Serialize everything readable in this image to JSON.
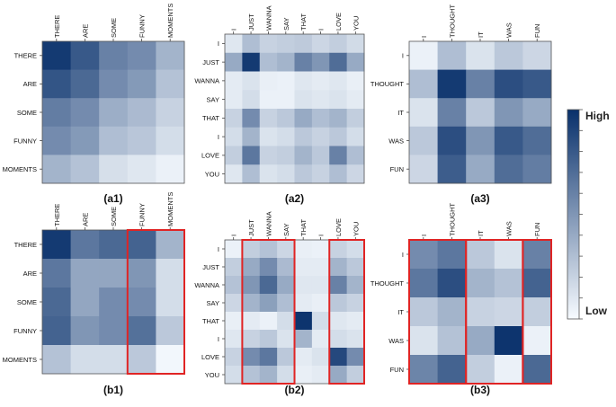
{
  "colors": {
    "low": "#f7fbff",
    "high": "#08306b",
    "highlight_box": "#e02424",
    "frame": "#555555"
  },
  "chart_data": [
    {
      "type": "heatmap",
      "caption": "(a1)",
      "rows": [
        "THERE",
        "ARE",
        "SOME",
        "FUNNY",
        "MOMENTS"
      ],
      "cols": [
        "THERE",
        "ARE",
        "SOME",
        "FUNNY",
        "MOMENTS"
      ],
      "values": [
        [
          0.95,
          0.8,
          0.6,
          0.55,
          0.35
        ],
        [
          0.82,
          0.72,
          0.55,
          0.48,
          0.28
        ],
        [
          0.62,
          0.55,
          0.38,
          0.32,
          0.2
        ],
        [
          0.55,
          0.48,
          0.3,
          0.26,
          0.15
        ],
        [
          0.35,
          0.28,
          0.14,
          0.1,
          0.05
        ]
      ],
      "highlight_cols": [],
      "vrange": [
        0,
        1
      ]
    },
    {
      "type": "heatmap",
      "caption": "(a2)",
      "rows": [
        "I",
        "JUST",
        "WANNA",
        "SAY",
        "THAT",
        "I",
        "LOVE",
        "YOU"
      ],
      "cols": [
        "I",
        "JUST",
        "WANNA",
        "SAY",
        "THAT",
        "I",
        "LOVE",
        "YOU"
      ],
      "values": [
        [
          0.1,
          0.3,
          0.2,
          0.22,
          0.24,
          0.18,
          0.22,
          0.16
        ],
        [
          0.4,
          0.95,
          0.3,
          0.35,
          0.6,
          0.5,
          0.7,
          0.4
        ],
        [
          0.08,
          0.12,
          0.06,
          0.05,
          0.1,
          0.08,
          0.1,
          0.06
        ],
        [
          0.08,
          0.15,
          0.05,
          0.05,
          0.12,
          0.1,
          0.12,
          0.08
        ],
        [
          0.2,
          0.55,
          0.2,
          0.25,
          0.4,
          0.3,
          0.35,
          0.22
        ],
        [
          0.15,
          0.35,
          0.12,
          0.15,
          0.25,
          0.2,
          0.25,
          0.15
        ],
        [
          0.22,
          0.65,
          0.2,
          0.22,
          0.35,
          0.25,
          0.6,
          0.3
        ],
        [
          0.1,
          0.3,
          0.12,
          0.15,
          0.25,
          0.2,
          0.3,
          0.18
        ]
      ],
      "highlight_cols": [],
      "vrange": [
        0,
        1
      ]
    },
    {
      "type": "heatmap",
      "caption": "(a3)",
      "rows": [
        "I",
        "THOUGHT",
        "IT",
        "WAS",
        "FUN"
      ],
      "cols": [
        "I",
        "THOUGHT",
        "IT",
        "WAS",
        "FUN"
      ],
      "values": [
        [
          0.05,
          0.3,
          0.12,
          0.25,
          0.18
        ],
        [
          0.3,
          0.95,
          0.6,
          0.85,
          0.8
        ],
        [
          0.12,
          0.6,
          0.25,
          0.5,
          0.4
        ],
        [
          0.25,
          0.85,
          0.5,
          0.8,
          0.7
        ],
        [
          0.18,
          0.78,
          0.4,
          0.7,
          0.62
        ]
      ],
      "highlight_cols": [],
      "vrange": [
        0,
        1
      ]
    },
    {
      "type": "heatmap",
      "caption": "(b1)",
      "rows": [
        "THERE",
        "ARE",
        "SOME",
        "FUNNY",
        "MOMENTS"
      ],
      "cols": [
        "THERE",
        "ARE",
        "SOME",
        "FUNNY",
        "MOMENTS"
      ],
      "values": [
        [
          0.95,
          0.65,
          0.72,
          0.75,
          0.35
        ],
        [
          0.65,
          0.42,
          0.42,
          0.5,
          0.15
        ],
        [
          0.72,
          0.42,
          0.55,
          0.55,
          0.15
        ],
        [
          0.75,
          0.5,
          0.55,
          0.68,
          0.25
        ],
        [
          0.28,
          0.15,
          0.15,
          0.25,
          0.02
        ]
      ],
      "highlight_cols": [
        [
          3,
          4
        ]
      ],
      "vrange": [
        0,
        1
      ]
    },
    {
      "type": "heatmap",
      "caption": "(b2)",
      "rows": [
        "I",
        "JUST",
        "WANNA",
        "SAY",
        "THAT",
        "I",
        "LOVE",
        "YOU"
      ],
      "cols": [
        "I",
        "JUST",
        "WANNA",
        "SAY",
        "THAT",
        "I",
        "LOVE",
        "YOU"
      ],
      "values": [
        [
          0.05,
          0.22,
          0.28,
          0.18,
          0.06,
          0.05,
          0.2,
          0.15
        ],
        [
          0.22,
          0.4,
          0.55,
          0.32,
          0.08,
          0.08,
          0.35,
          0.25
        ],
        [
          0.28,
          0.5,
          0.72,
          0.4,
          0.1,
          0.1,
          0.6,
          0.35
        ],
        [
          0.18,
          0.35,
          0.45,
          0.3,
          0.08,
          0.06,
          0.25,
          0.2
        ],
        [
          0.06,
          0.08,
          0.05,
          0.15,
          0.98,
          0.15,
          0.1,
          0.08
        ],
        [
          0.1,
          0.2,
          0.25,
          0.12,
          0.35,
          0.08,
          0.15,
          0.12
        ],
        [
          0.2,
          0.55,
          0.65,
          0.25,
          0.08,
          0.12,
          0.88,
          0.55
        ],
        [
          0.15,
          0.28,
          0.35,
          0.15,
          0.06,
          0.08,
          0.4,
          0.22
        ]
      ],
      "highlight_cols": [
        [
          1,
          3
        ],
        [
          6,
          7
        ]
      ],
      "vrange": [
        0,
        1
      ]
    },
    {
      "type": "heatmap",
      "caption": "(b3)",
      "rows": [
        "I",
        "THOUGHT",
        "IT",
        "WAS",
        "FUN"
      ],
      "cols": [
        "I",
        "THOUGHT",
        "IT",
        "WAS",
        "FUN"
      ],
      "values": [
        [
          0.55,
          0.65,
          0.25,
          0.12,
          0.6
        ],
        [
          0.65,
          0.85,
          0.35,
          0.28,
          0.75
        ],
        [
          0.25,
          0.35,
          0.2,
          0.18,
          0.22
        ],
        [
          0.12,
          0.28,
          0.4,
          0.98,
          0.05
        ],
        [
          0.58,
          0.75,
          0.22,
          0.05,
          0.72
        ]
      ],
      "highlight_cols": [
        [
          0,
          1
        ],
        [
          2,
          3
        ],
        [
          4,
          4
        ]
      ],
      "vrange": [
        0,
        1
      ]
    }
  ],
  "colorbar": {
    "high_label": "High",
    "low_label": "Low"
  }
}
